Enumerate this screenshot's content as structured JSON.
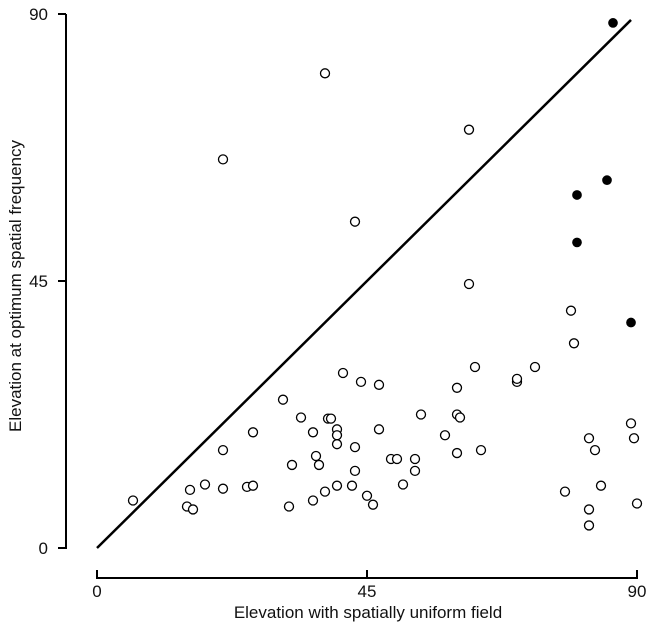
{
  "chart_data": {
    "type": "scatter",
    "title": "",
    "xlabel": "Elevation with spatially uniform field",
    "ylabel": "Elevation at optimum spatial frequency",
    "xlim": [
      0,
      90
    ],
    "ylim": [
      0,
      90
    ],
    "x_ticks": [
      "0",
      "45",
      "90"
    ],
    "y_ticks": [
      "0",
      "45",
      "90"
    ],
    "grid": false,
    "legend": "none",
    "reference_line": {
      "from": [
        0,
        0
      ],
      "to": [
        89,
        89
      ]
    },
    "series": [
      {
        "marker": "open-circle",
        "points": [
          [
            6,
            8
          ],
          [
            15,
            7
          ],
          [
            16,
            6.5
          ],
          [
            15.5,
            9.8
          ],
          [
            18,
            10.7
          ],
          [
            21,
            10
          ],
          [
            21,
            16.5
          ],
          [
            21,
            65.5
          ],
          [
            25,
            10.3
          ],
          [
            26,
            10.5
          ],
          [
            26,
            19.5
          ],
          [
            31,
            25
          ],
          [
            32,
            7
          ],
          [
            32.5,
            14
          ],
          [
            34,
            22
          ],
          [
            36,
            19.5
          ],
          [
            36,
            8
          ],
          [
            36.5,
            15.5
          ],
          [
            37,
            14
          ],
          [
            38,
            9.5
          ],
          [
            38,
            80
          ],
          [
            38.5,
            21.8
          ],
          [
            39,
            21.8
          ],
          [
            40,
            10.5
          ],
          [
            40,
            20
          ],
          [
            40,
            19
          ],
          [
            40,
            17.5
          ],
          [
            41,
            29.5
          ],
          [
            42.5,
            10.5
          ],
          [
            43,
            17
          ],
          [
            43,
            13
          ],
          [
            43,
            55
          ],
          [
            44,
            28
          ],
          [
            45,
            8.8
          ],
          [
            46,
            7.3
          ],
          [
            47,
            20
          ],
          [
            47,
            27.5
          ],
          [
            49,
            15
          ],
          [
            50,
            15
          ],
          [
            51,
            10.7
          ],
          [
            53,
            15
          ],
          [
            53,
            13
          ],
          [
            54,
            22.5
          ],
          [
            58,
            19
          ],
          [
            60,
            16
          ],
          [
            60,
            27
          ],
          [
            60,
            22.5
          ],
          [
            60.5,
            22
          ],
          [
            62,
            70.5
          ],
          [
            62,
            44.5
          ],
          [
            63,
            30.5
          ],
          [
            64,
            16.5
          ],
          [
            70,
            28
          ],
          [
            70,
            28.5
          ],
          [
            73,
            30.5
          ],
          [
            78,
            9.5
          ],
          [
            79,
            40
          ],
          [
            79.5,
            34.5
          ],
          [
            82,
            6.5
          ],
          [
            82,
            3.8
          ],
          [
            82,
            18.5
          ],
          [
            83,
            16.5
          ],
          [
            84,
            10.5
          ],
          [
            89,
            21
          ],
          [
            89.5,
            18.5
          ],
          [
            90,
            7.5
          ]
        ]
      },
      {
        "marker": "filled-circle",
        "points": [
          [
            80,
            59.5
          ],
          [
            80,
            51.5
          ],
          [
            85,
            62
          ],
          [
            86,
            88.5
          ],
          [
            89,
            38
          ]
        ]
      }
    ]
  }
}
